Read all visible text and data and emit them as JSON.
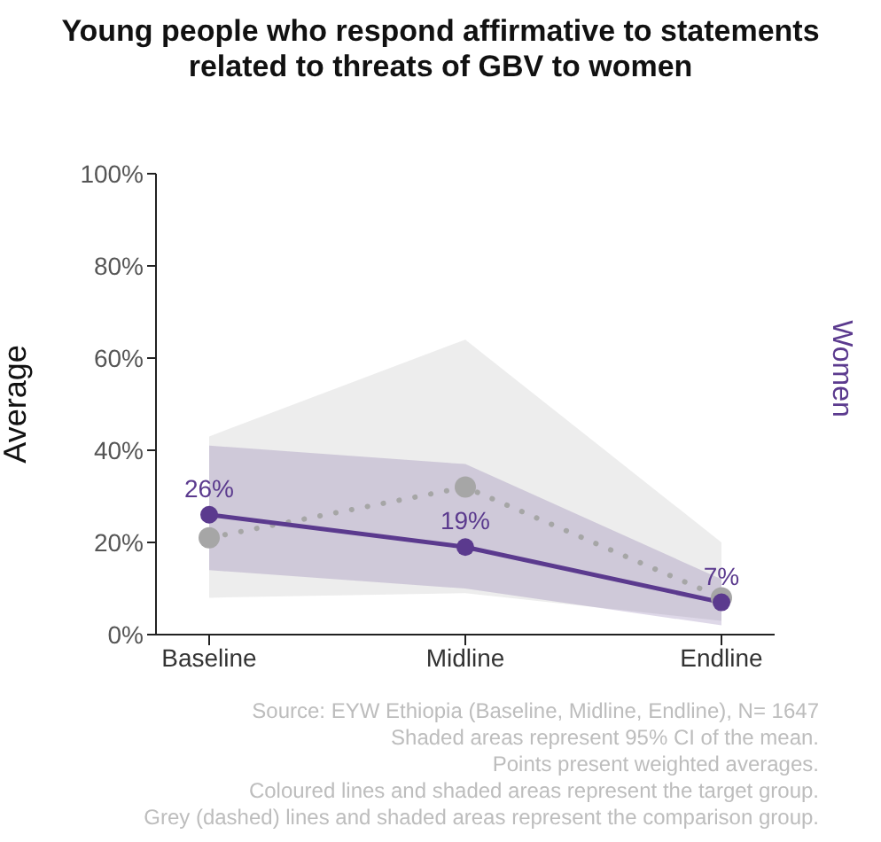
{
  "chart_data": {
    "type": "line",
    "title": "Young people who respond affirmative to statements related to threats of GBV to women",
    "ylabel": "Average",
    "y2label": "Women",
    "categories": [
      "Baseline",
      "Midline",
      "Endline"
    ],
    "series": [
      {
        "color": "#a6a6a6",
        "values": [
          21,
          32,
          8
        ],
        "lower": [
          8,
          9,
          3
        ],
        "upper": [
          43,
          64,
          20
        ],
        "line_style": "dotted"
      },
      {
        "color": "#5b3a8e",
        "values": [
          26,
          19,
          7
        ],
        "lower": [
          14,
          10,
          2
        ],
        "upper": [
          41,
          37,
          12
        ],
        "line_style": "solid",
        "value_labels": [
          "26%",
          "19%",
          "7%"
        ]
      }
    ],
    "ylim": [
      0,
      100
    ],
    "yticks": [
      {
        "value": 0,
        "label": "0%"
      },
      {
        "value": 20,
        "label": "20%"
      },
      {
        "value": 40,
        "label": "40%"
      },
      {
        "value": 60,
        "label": "60%"
      },
      {
        "value": 80,
        "label": "80%"
      },
      {
        "value": 100,
        "label": "100%"
      }
    ],
    "marker": "circle",
    "grid": false,
    "legend": false,
    "annotations": [
      "Source: EYW Ethiopia (Baseline, Midline, Endline), N= 1647",
      "Shaded areas represent 95% CI of the mean.",
      "Points present weighted averages.",
      "Coloured lines and shaded areas represent the target group.",
      "Grey (dashed) lines and shaded areas represent the comparison group."
    ]
  }
}
